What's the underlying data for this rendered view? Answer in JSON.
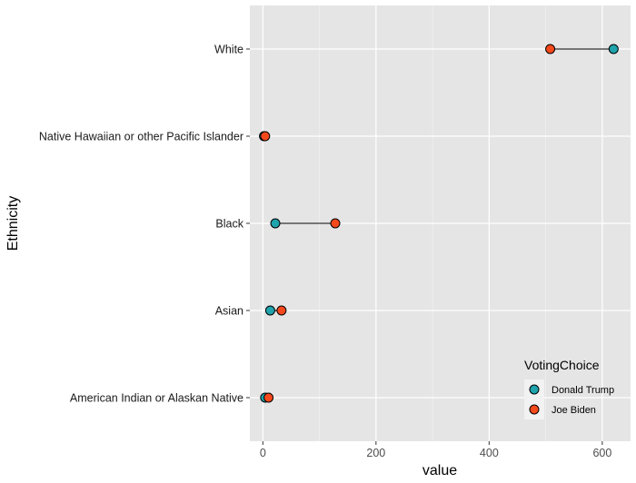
{
  "chart_data": {
    "type": "dumbbell",
    "xlabel": "value",
    "ylabel": "Ethnicity",
    "xlim": [
      -23,
      650
    ],
    "x_ticks": [
      0,
      200,
      400,
      600
    ],
    "grid": true,
    "legend": {
      "title": "VotingChoice",
      "position": "bottom-right-inside"
    },
    "categories": [
      "American Indian or Alaskan Native",
      "Asian",
      "Black",
      "Native Hawaiian or other Pacific Islander",
      "White"
    ],
    "series": [
      {
        "name": "Donald Trump",
        "color": "#1fa3ad",
        "values": [
          4,
          13,
          22,
          2,
          620
        ]
      },
      {
        "name": "Joe Biden",
        "color": "#f4491c",
        "values": [
          10,
          33,
          128,
          4,
          508
        ]
      }
    ]
  }
}
